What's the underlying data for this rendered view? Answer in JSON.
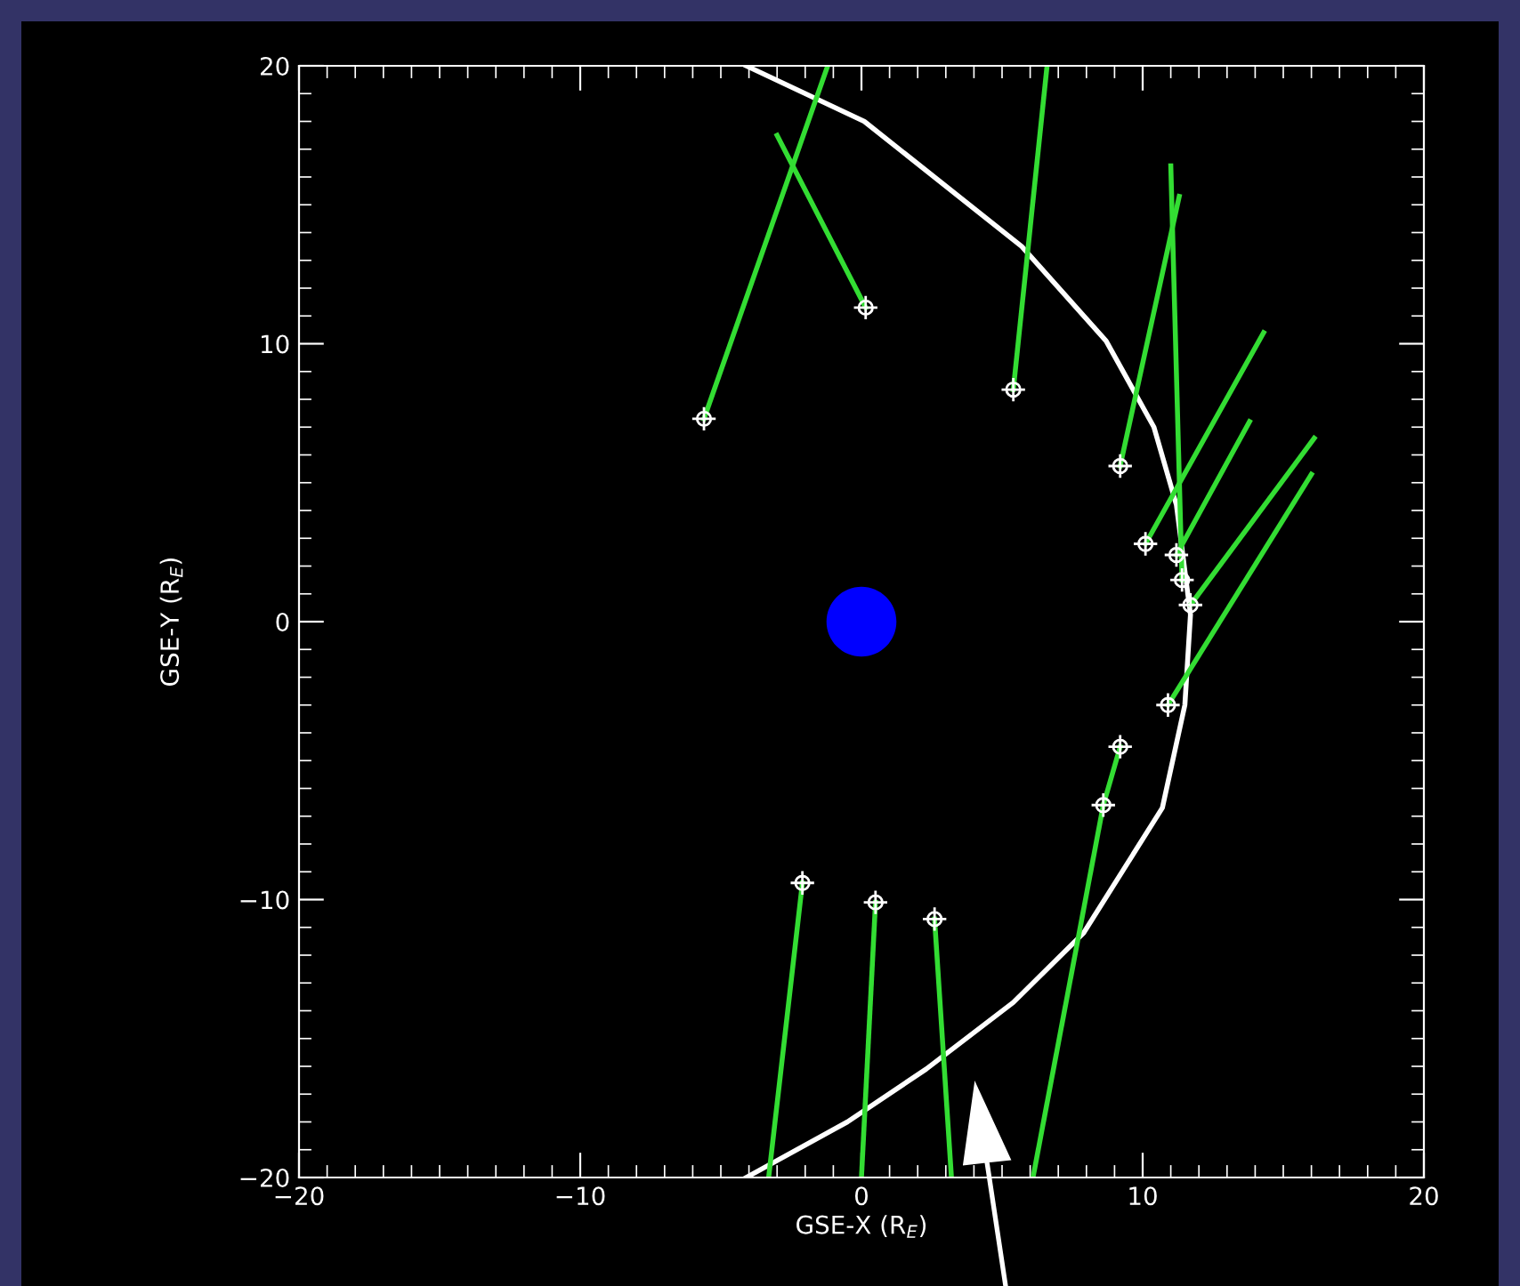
{
  "chart_data": {
    "type": "scatter",
    "xlabel": "GSE-X (R$_{E}$)",
    "ylabel": "GSE-Y (R$_{E}$)",
    "xlim": [
      -20,
      20
    ],
    "ylim": [
      -20,
      20
    ],
    "xticks": [
      -20,
      -10,
      0,
      10,
      20
    ],
    "yticks": [
      -20,
      -10,
      0,
      10,
      20
    ],
    "grid": false,
    "series": [
      {
        "type": "line",
        "color": "#ffffff",
        "x": [
          -4.1,
          0.1,
          5.7,
          8.7,
          10.4,
          11.2,
          11.7,
          11.5,
          10.7,
          7.9,
          5.4,
          2.3,
          -0.5,
          -4.1
        ],
        "values": [
          20,
          18,
          13.5,
          10.1,
          7.0,
          4.2,
          0.25,
          -3.0,
          -6.7,
          -11.2,
          -13.7,
          -16.1,
          -18.0,
          -20
        ]
      },
      {
        "type": "line",
        "color": "#33dd33",
        "x": [
          -5.6,
          -1.2
        ],
        "values": [
          7.3,
          20
        ]
      },
      {
        "type": "line",
        "color": "#33dd33",
        "x": [
          0.15,
          -3.0
        ],
        "values": [
          11.3,
          17.5
        ]
      },
      {
        "type": "line",
        "color": "#33dd33",
        "x": [
          5.4,
          6.6
        ],
        "values": [
          8.35,
          20
        ]
      },
      {
        "type": "line",
        "color": "#33dd33",
        "x": [
          9.2,
          11.3
        ],
        "values": [
          5.6,
          15.3
        ]
      },
      {
        "type": "line",
        "color": "#33dd33",
        "x": [
          10.1,
          14.3
        ],
        "values": [
          2.8,
          10.4
        ]
      },
      {
        "type": "line",
        "color": "#33dd33",
        "x": [
          11.2,
          13.8
        ],
        "values": [
          2.4,
          7.2
        ]
      },
      {
        "type": "line",
        "color": "#33dd33",
        "x": [
          11.4,
          11.0
        ],
        "values": [
          1.5,
          16.4
        ]
      },
      {
        "type": "line",
        "color": "#33dd33",
        "x": [
          11.7,
          16.1
        ],
        "values": [
          0.6,
          6.6
        ]
      },
      {
        "type": "line",
        "color": "#33dd33",
        "x": [
          10.9,
          16.0
        ],
        "values": [
          -3.0,
          5.3
        ]
      },
      {
        "type": "line",
        "color": "#33dd33",
        "x": [
          9.2,
          8.6
        ],
        "values": [
          -4.5,
          -6.6
        ]
      },
      {
        "type": "line",
        "color": "#33dd33",
        "x": [
          8.6,
          6.1
        ],
        "values": [
          -6.6,
          -20
        ]
      },
      {
        "type": "line",
        "color": "#33dd33",
        "x": [
          -2.1,
          -3.3
        ],
        "values": [
          -9.4,
          -20
        ]
      },
      {
        "type": "line",
        "color": "#33dd33",
        "x": [
          0.5,
          0.0
        ],
        "values": [
          -10.1,
          -20
        ]
      },
      {
        "type": "line",
        "color": "#33dd33",
        "x": [
          2.6,
          3.2
        ],
        "values": [
          -10.7,
          -20
        ]
      },
      {
        "marker": "cross",
        "color": "#ffffff",
        "x": [
          -5.6,
          0.15,
          5.4,
          9.2,
          10.1,
          11.2,
          11.4,
          11.7,
          10.9,
          9.2,
          8.6,
          -2.1,
          0.5,
          2.6
        ],
        "values": [
          7.3,
          11.3,
          8.35,
          5.6,
          2.8,
          2.4,
          1.5,
          0.6,
          -3.0,
          -4.5,
          -6.6,
          -9.4,
          -10.1,
          -10.7
        ]
      },
      {
        "marker": "circle",
        "color": "#0000ff",
        "x": [
          0
        ],
        "values": [
          0
        ]
      }
    ]
  }
}
